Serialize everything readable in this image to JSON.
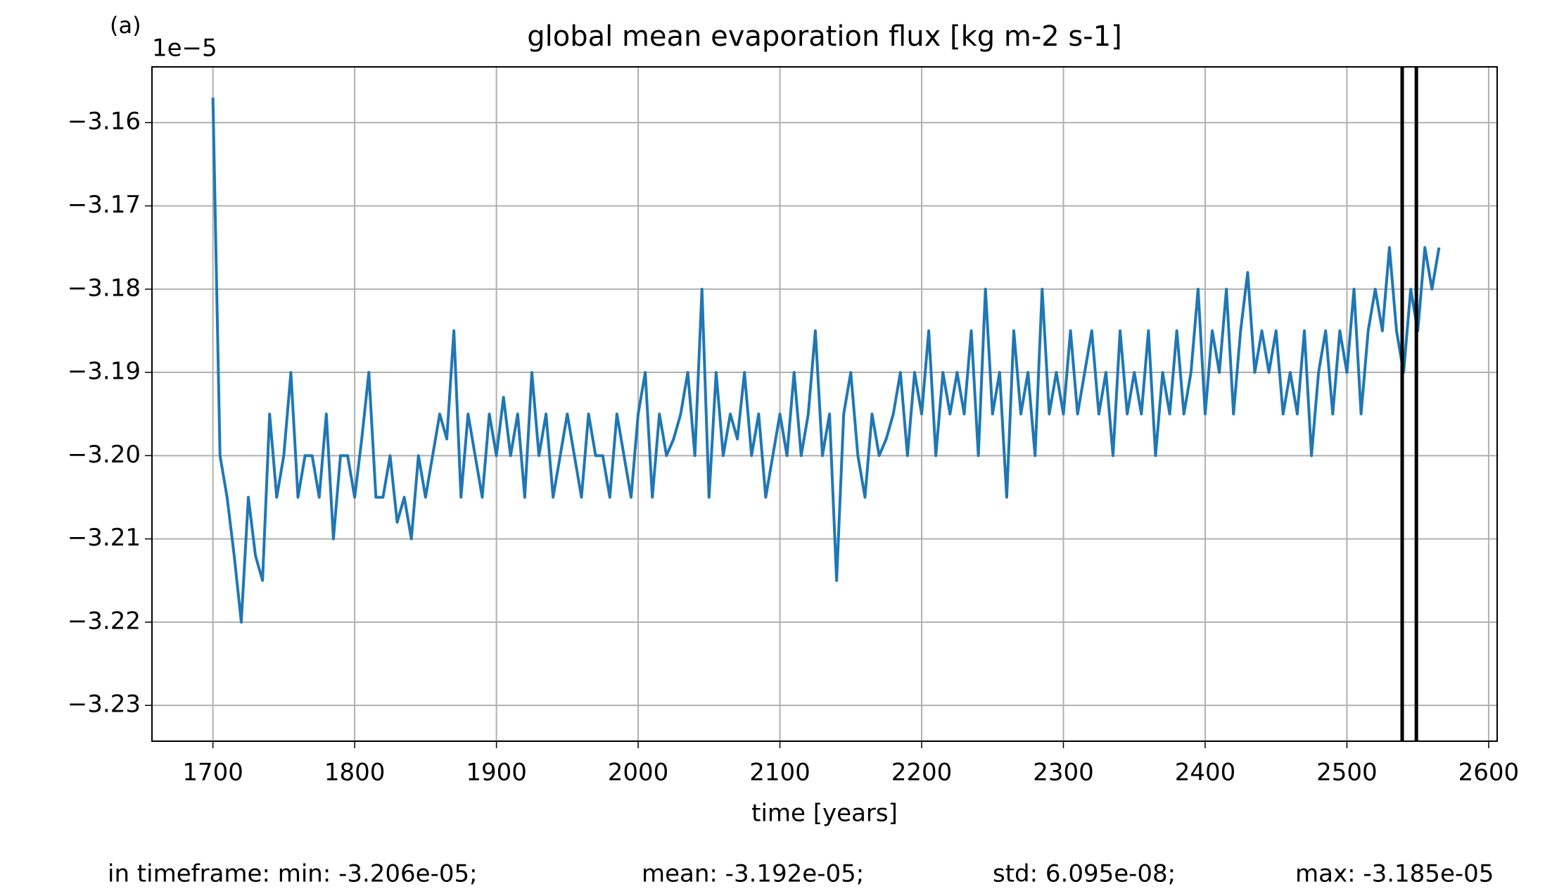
{
  "chart_data": {
    "type": "line",
    "title": "global mean evaporation flux [kg m-2 s-1]",
    "panel_label": "(a)",
    "y_offset_label": "1e−5",
    "xlabel": "time [years]",
    "stats": [
      "in timeframe: min: -3.206e-05;",
      "mean: -3.192e-05;",
      "std: 6.095e-08;",
      "max: -3.185e-05"
    ],
    "x": [
      1700,
      1705,
      1710,
      1715,
      1720,
      1725,
      1730,
      1735,
      1740,
      1745,
      1750,
      1755,
      1760,
      1765,
      1770,
      1775,
      1780,
      1785,
      1790,
      1795,
      1800,
      1805,
      1810,
      1815,
      1820,
      1825,
      1830,
      1835,
      1840,
      1845,
      1850,
      1855,
      1860,
      1865,
      1870,
      1875,
      1880,
      1885,
      1890,
      1895,
      1900,
      1905,
      1910,
      1915,
      1920,
      1925,
      1930,
      1935,
      1940,
      1945,
      1950,
      1955,
      1960,
      1965,
      1970,
      1975,
      1980,
      1985,
      1990,
      1995,
      2000,
      2005,
      2010,
      2015,
      2020,
      2025,
      2030,
      2035,
      2040,
      2045,
      2050,
      2055,
      2060,
      2065,
      2070,
      2075,
      2080,
      2085,
      2090,
      2095,
      2100,
      2105,
      2110,
      2115,
      2120,
      2125,
      2130,
      2135,
      2140,
      2145,
      2150,
      2155,
      2160,
      2165,
      2170,
      2175,
      2180,
      2185,
      2190,
      2195,
      2200,
      2205,
      2210,
      2215,
      2220,
      2225,
      2230,
      2235,
      2240,
      2245,
      2250,
      2255,
      2260,
      2265,
      2270,
      2275,
      2280,
      2285,
      2290,
      2295,
      2300,
      2305,
      2310,
      2315,
      2320,
      2325,
      2330,
      2335,
      2340,
      2345,
      2350,
      2355,
      2360,
      2365,
      2370,
      2375,
      2380,
      2385,
      2390,
      2395,
      2400,
      2405,
      2410,
      2415,
      2420,
      2425,
      2430,
      2435,
      2440,
      2445,
      2450,
      2455,
      2460,
      2465,
      2470,
      2475,
      2480,
      2485,
      2490,
      2495,
      2500,
      2505,
      2510,
      2515,
      2520,
      2525,
      2530,
      2535,
      2540,
      2545,
      2550,
      2555,
      2560,
      2565
    ],
    "series": [
      {
        "color": "#1f77b4",
        "values": [
          -3.157,
          -3.2,
          -3.205,
          -3.212,
          -3.22,
          -3.205,
          -3.212,
          -3.215,
          -3.195,
          -3.205,
          -3.2,
          -3.19,
          -3.205,
          -3.2,
          -3.2,
          -3.205,
          -3.195,
          -3.21,
          -3.2,
          -3.2,
          -3.205,
          -3.198,
          -3.19,
          -3.205,
          -3.205,
          -3.2,
          -3.208,
          -3.205,
          -3.21,
          -3.2,
          -3.205,
          -3.2,
          -3.195,
          -3.198,
          -3.185,
          -3.205,
          -3.195,
          -3.2,
          -3.205,
          -3.195,
          -3.2,
          -3.193,
          -3.2,
          -3.195,
          -3.205,
          -3.19,
          -3.2,
          -3.195,
          -3.205,
          -3.2,
          -3.195,
          -3.2,
          -3.205,
          -3.195,
          -3.2,
          -3.2,
          -3.205,
          -3.195,
          -3.2,
          -3.205,
          -3.195,
          -3.19,
          -3.205,
          -3.195,
          -3.2,
          -3.198,
          -3.195,
          -3.19,
          -3.2,
          -3.18,
          -3.205,
          -3.19,
          -3.2,
          -3.195,
          -3.198,
          -3.19,
          -3.2,
          -3.195,
          -3.205,
          -3.2,
          -3.195,
          -3.2,
          -3.19,
          -3.2,
          -3.195,
          -3.185,
          -3.2,
          -3.195,
          -3.215,
          -3.195,
          -3.19,
          -3.2,
          -3.205,
          -3.195,
          -3.2,
          -3.198,
          -3.195,
          -3.19,
          -3.2,
          -3.19,
          -3.195,
          -3.185,
          -3.2,
          -3.19,
          -3.195,
          -3.19,
          -3.195,
          -3.185,
          -3.2,
          -3.18,
          -3.195,
          -3.19,
          -3.205,
          -3.185,
          -3.195,
          -3.19,
          -3.2,
          -3.18,
          -3.195,
          -3.19,
          -3.195,
          -3.185,
          -3.195,
          -3.19,
          -3.185,
          -3.195,
          -3.19,
          -3.2,
          -3.185,
          -3.195,
          -3.19,
          -3.195,
          -3.185,
          -3.2,
          -3.19,
          -3.195,
          -3.185,
          -3.195,
          -3.19,
          -3.18,
          -3.195,
          -3.185,
          -3.19,
          -3.18,
          -3.195,
          -3.185,
          -3.178,
          -3.19,
          -3.185,
          -3.19,
          -3.185,
          -3.195,
          -3.19,
          -3.195,
          -3.185,
          -3.2,
          -3.19,
          -3.185,
          -3.195,
          -3.185,
          -3.19,
          -3.18,
          -3.195,
          -3.185,
          -3.18,
          -3.185,
          -3.175,
          -3.185,
          -3.19,
          -3.18,
          -3.185,
          -3.175,
          -3.18,
          -3.175
        ]
      }
    ],
    "vlines": [
      2539,
      2549
    ],
    "vline_color": "#000000",
    "xlim": [
      1657,
      2606
    ],
    "ylim": [
      -3.2343,
      -3.1533
    ],
    "xticks": [
      1700,
      1800,
      1900,
      2000,
      2100,
      2200,
      2300,
      2400,
      2500,
      2600
    ],
    "yticks": [
      {
        "value": -3.23,
        "label": "−3.23"
      },
      {
        "value": -3.22,
        "label": "−3.22"
      },
      {
        "value": -3.21,
        "label": "−3.21"
      },
      {
        "value": -3.2,
        "label": "−3.20"
      },
      {
        "value": -3.19,
        "label": "−3.19"
      },
      {
        "value": -3.18,
        "label": "−3.18"
      },
      {
        "value": -3.17,
        "label": "−3.17"
      },
      {
        "value": -3.16,
        "label": "−3.16"
      }
    ],
    "grid": true
  }
}
